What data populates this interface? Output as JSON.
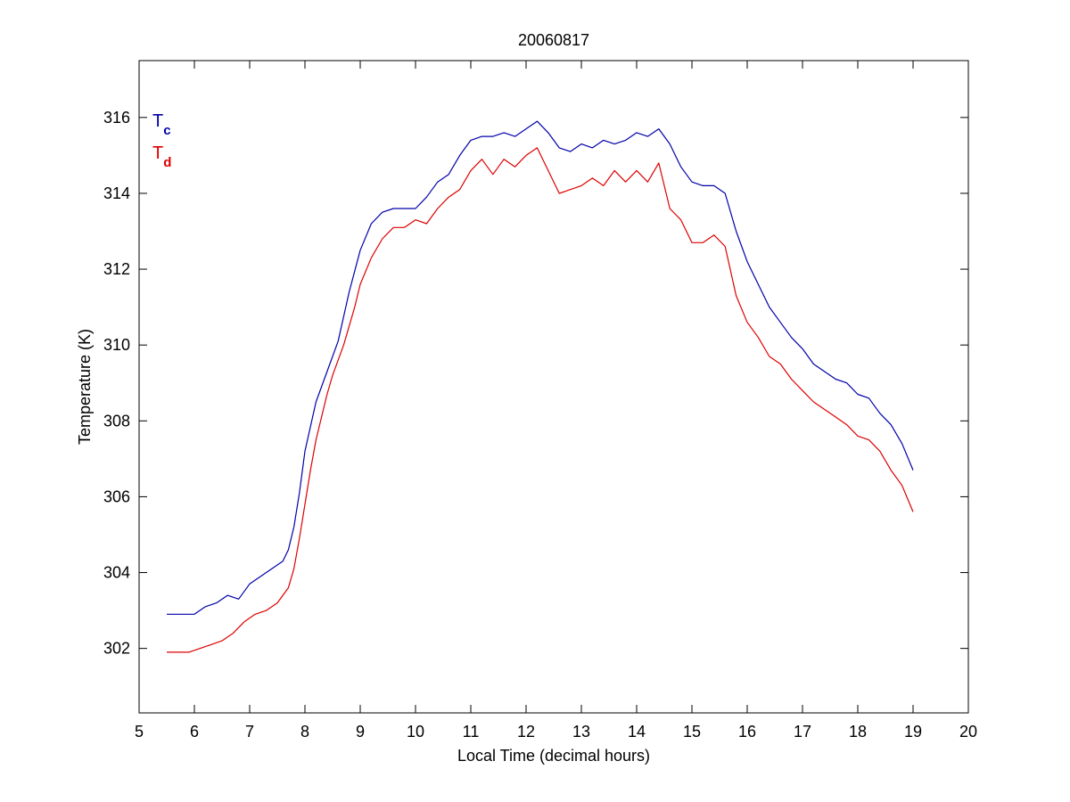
{
  "chart_data": {
    "type": "line",
    "title": "20060817",
    "xlabel": "Local Time (decimal hours)",
    "ylabel": "Temperature (K)",
    "xlim": [
      5,
      20
    ],
    "ylim": [
      300.3,
      317.5
    ],
    "xticks": [
      5,
      6,
      7,
      8,
      9,
      10,
      11,
      12,
      13,
      14,
      15,
      16,
      17,
      18,
      19,
      20
    ],
    "xtick_labels": [
      "5",
      "6",
      "7",
      "8",
      "9",
      "10",
      "11",
      "12",
      "13",
      "14",
      "15",
      "16",
      "17",
      "18",
      "19",
      "20"
    ],
    "yticks": [
      302,
      304,
      306,
      308,
      310,
      312,
      314,
      316
    ],
    "ytick_labels": [
      "302",
      "304",
      "306",
      "308",
      "310",
      "312",
      "314",
      "316"
    ],
    "grid": false,
    "legend_position": "top-left",
    "series": [
      {
        "name": "T",
        "subscript": "c",
        "color": "#0000aa",
        "x": [
          5.5,
          5.75,
          6.0,
          6.2,
          6.4,
          6.6,
          6.8,
          7.0,
          7.2,
          7.4,
          7.6,
          7.7,
          7.8,
          7.9,
          8.0,
          8.2,
          8.4,
          8.6,
          8.8,
          9.0,
          9.2,
          9.4,
          9.6,
          9.8,
          10.0,
          10.2,
          10.4,
          10.6,
          10.8,
          11.0,
          11.2,
          11.4,
          11.6,
          11.8,
          12.0,
          12.2,
          12.4,
          12.6,
          12.8,
          13.0,
          13.2,
          13.4,
          13.6,
          13.8,
          14.0,
          14.2,
          14.4,
          14.6,
          14.8,
          15.0,
          15.2,
          15.4,
          15.6,
          15.8,
          16.0,
          16.2,
          16.4,
          16.6,
          16.8,
          17.0,
          17.2,
          17.4,
          17.6,
          17.8,
          18.0,
          18.2,
          18.4,
          18.6,
          18.8,
          19.0
        ],
        "y": [
          302.9,
          302.9,
          302.9,
          303.1,
          303.2,
          303.4,
          303.3,
          303.7,
          303.9,
          304.1,
          304.3,
          304.6,
          305.2,
          306.1,
          307.2,
          308.5,
          309.3,
          310.1,
          311.4,
          312.5,
          313.2,
          313.5,
          313.6,
          313.6,
          313.6,
          313.9,
          314.3,
          314.5,
          315.0,
          315.4,
          315.5,
          315.5,
          315.6,
          315.5,
          315.7,
          315.9,
          315.6,
          315.2,
          315.1,
          315.3,
          315.2,
          315.4,
          315.3,
          315.4,
          315.6,
          315.5,
          315.7,
          315.3,
          314.7,
          314.3,
          314.2,
          314.2,
          314.0,
          313.0,
          312.2,
          311.6,
          311.0,
          310.6,
          310.2,
          309.9,
          309.5,
          309.3,
          309.1,
          309.0,
          308.7,
          308.6,
          308.2,
          307.9,
          307.4,
          306.7
        ]
      },
      {
        "name": "T",
        "subscript": "d",
        "color": "#dd0000",
        "x": [
          5.5,
          5.7,
          5.9,
          6.1,
          6.3,
          6.5,
          6.7,
          6.9,
          7.1,
          7.3,
          7.5,
          7.7,
          7.8,
          7.9,
          8.0,
          8.1,
          8.2,
          8.3,
          8.4,
          8.5,
          8.6,
          8.7,
          8.8,
          8.9,
          9.0,
          9.2,
          9.4,
          9.6,
          9.8,
          10.0,
          10.2,
          10.4,
          10.6,
          10.8,
          11.0,
          11.2,
          11.4,
          11.6,
          11.8,
          12.0,
          12.2,
          12.4,
          12.6,
          12.8,
          13.0,
          13.2,
          13.4,
          13.6,
          13.8,
          14.0,
          14.2,
          14.4,
          14.6,
          14.8,
          15.0,
          15.2,
          15.4,
          15.6,
          15.8,
          16.0,
          16.2,
          16.4,
          16.6,
          16.8,
          17.0,
          17.2,
          17.4,
          17.6,
          17.8,
          18.0,
          18.2,
          18.4,
          18.6,
          18.8,
          19.0
        ],
        "y": [
          301.9,
          301.9,
          301.9,
          302.0,
          302.1,
          302.2,
          302.4,
          302.7,
          302.9,
          303.0,
          303.2,
          303.6,
          304.1,
          304.9,
          305.8,
          306.7,
          307.5,
          308.1,
          308.7,
          309.2,
          309.6,
          310.0,
          310.5,
          311.0,
          311.6,
          312.3,
          312.8,
          313.1,
          313.1,
          313.3,
          313.2,
          313.6,
          313.9,
          314.1,
          314.6,
          314.9,
          314.5,
          314.9,
          314.7,
          315.0,
          315.2,
          314.6,
          314.0,
          314.1,
          314.2,
          314.4,
          314.2,
          314.6,
          314.3,
          314.6,
          314.3,
          314.8,
          313.6,
          313.3,
          312.7,
          312.7,
          312.9,
          312.6,
          311.3,
          310.6,
          310.2,
          309.7,
          309.5,
          309.1,
          308.8,
          308.5,
          308.3,
          308.1,
          307.9,
          307.6,
          307.5,
          307.2,
          306.7,
          306.3,
          305.6
        ]
      }
    ]
  }
}
